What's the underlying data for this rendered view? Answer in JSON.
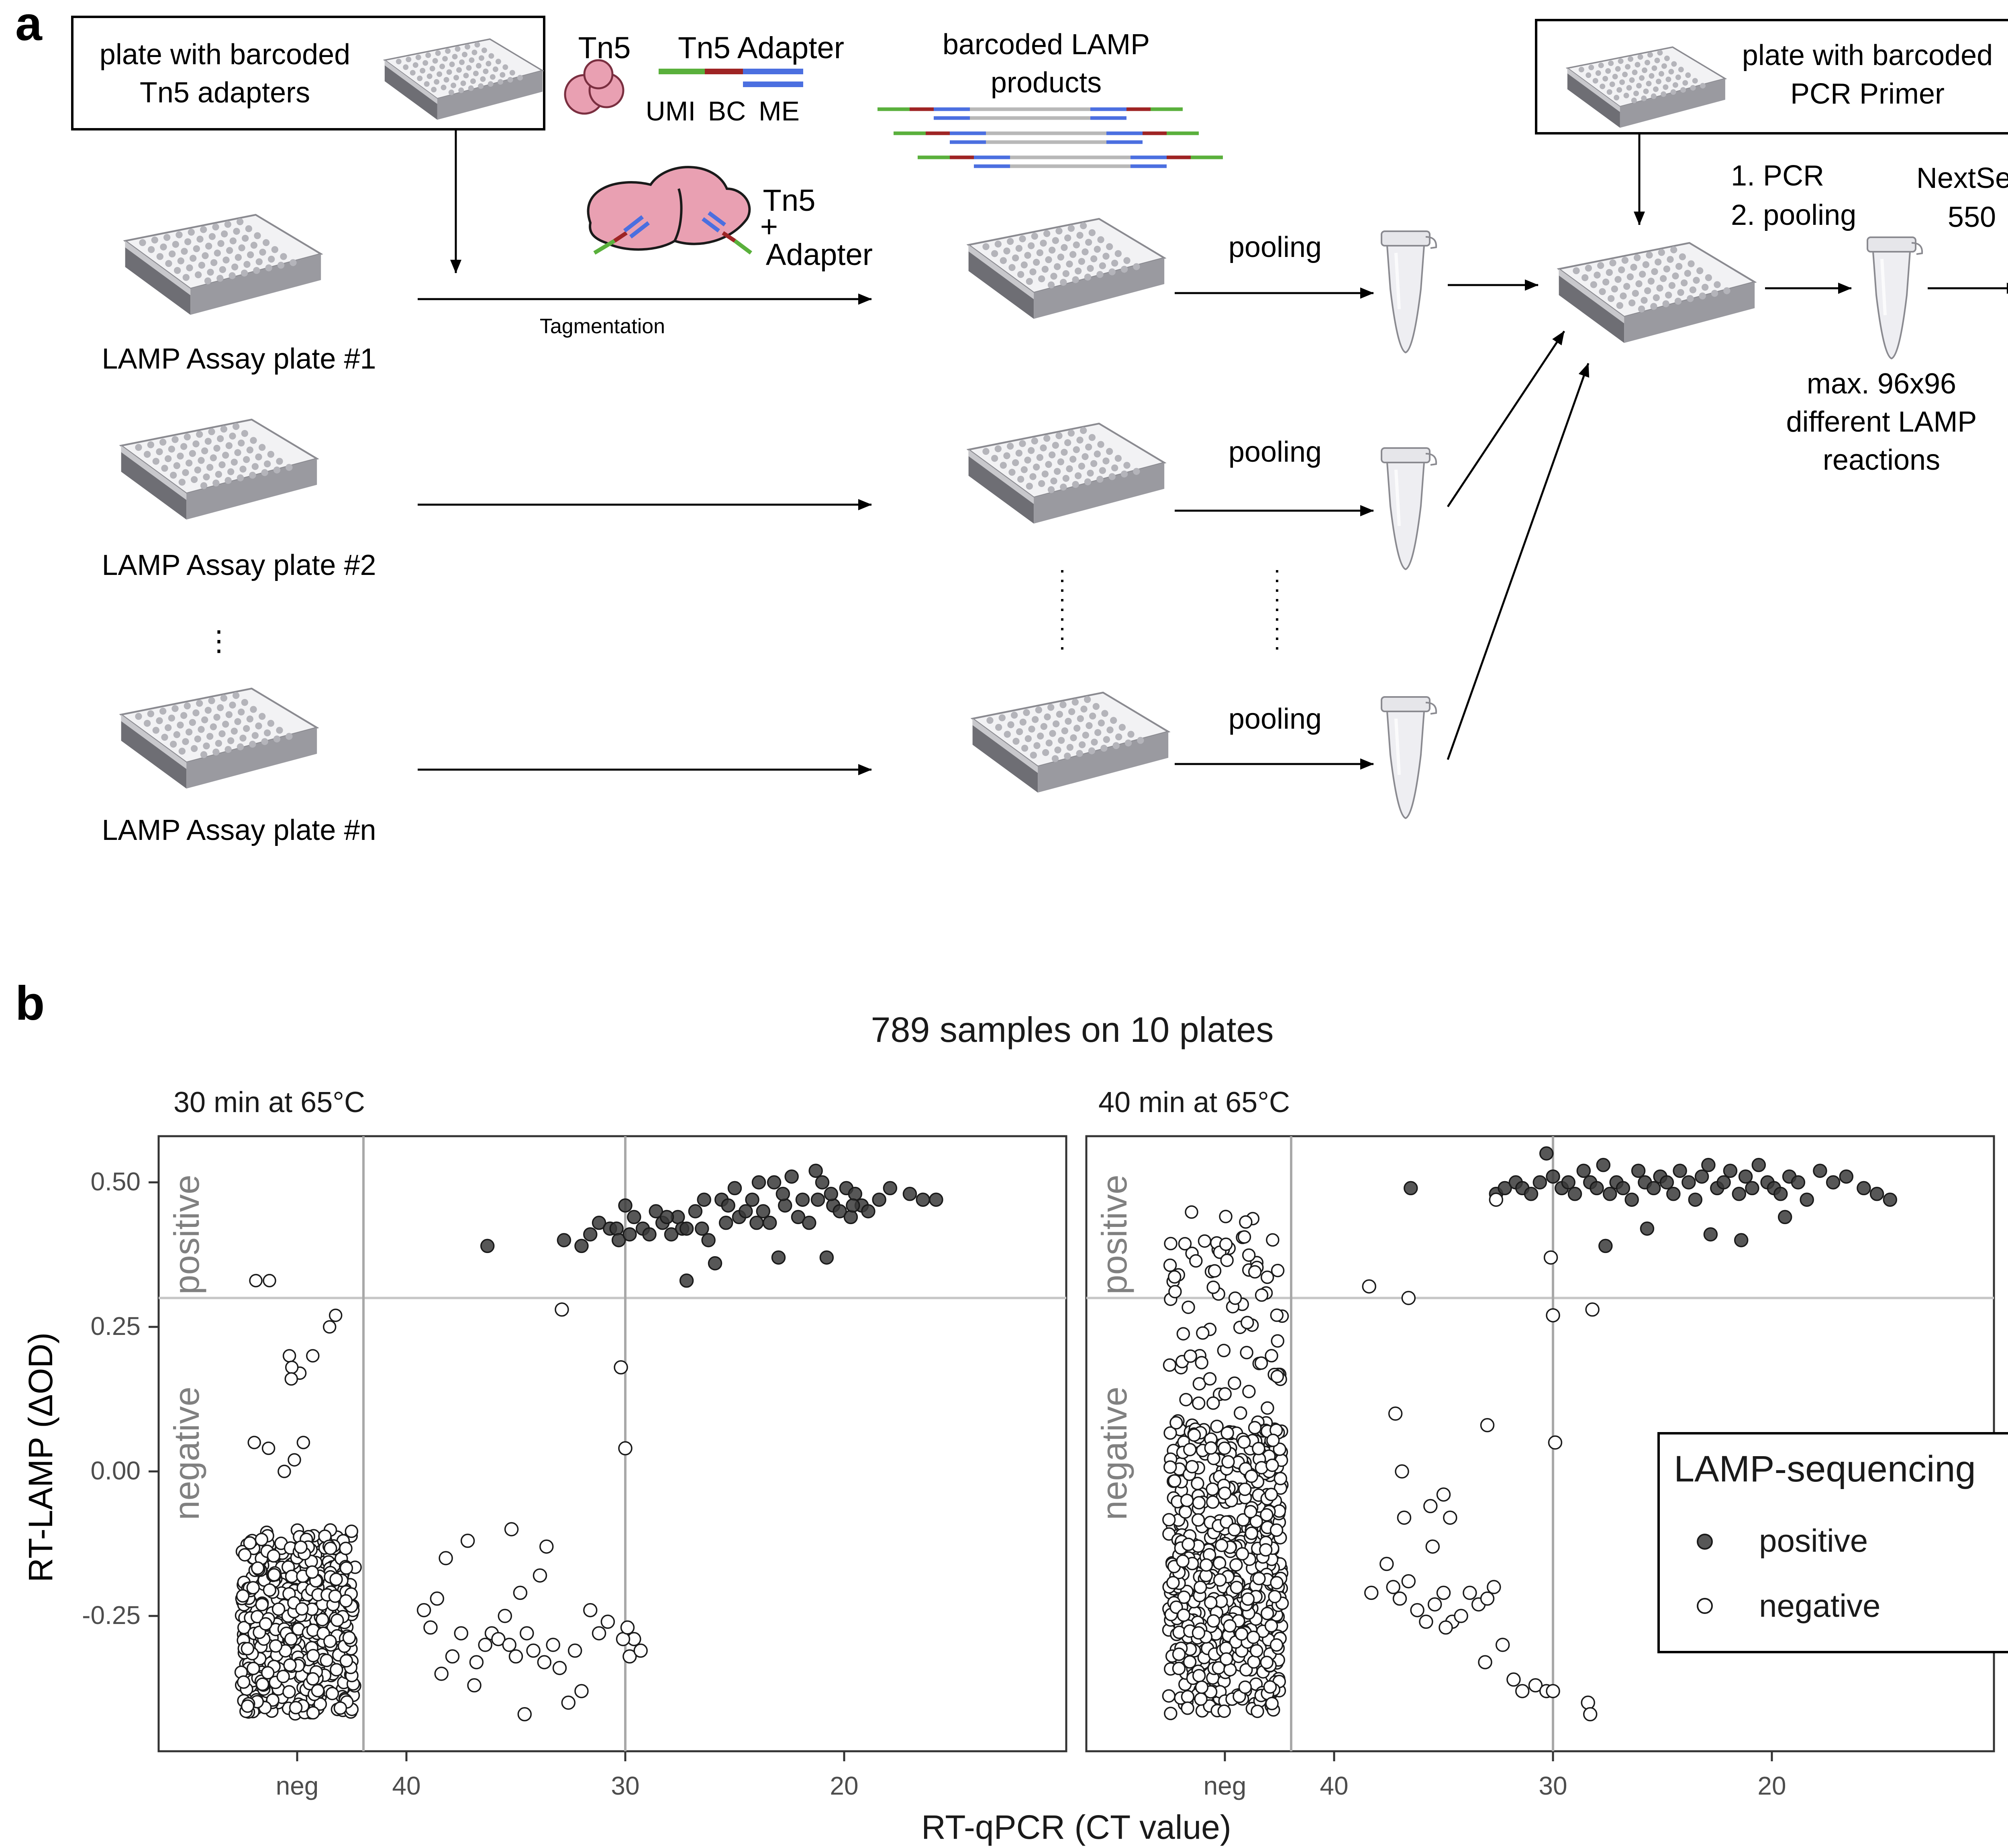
{
  "panel_a": {
    "label": "a",
    "box_tn5_plate": [
      "plate with barcoded",
      "Tn5 adapters"
    ],
    "tn5_label": "Tn5",
    "adapter_title": "Tn5 Adapter",
    "adapter_parts": [
      "UMI",
      "BC",
      "ME"
    ],
    "tn5_adapter_label": [
      "Tn5",
      "+",
      "Adapter"
    ],
    "barcoded_products": [
      "barcoded LAMP",
      "products"
    ],
    "tagmentation": "Tagmentation",
    "assay_plates": [
      "LAMP Assay plate #1",
      "LAMP Assay plate #2",
      "LAMP Assay plate #n"
    ],
    "pooling": "pooling",
    "box_pcr_plate": [
      "plate with barcoded",
      "PCR Primer"
    ],
    "steps": [
      "1.  PCR",
      "2.  pooling"
    ],
    "sequencer": [
      "NextSeq",
      "550"
    ],
    "max_note": [
      "max. 96x96",
      "different LAMP",
      "reactions"
    ],
    "colors": {
      "green": "#5ab03c",
      "red": "#9e2424",
      "blue": "#4b6fe0",
      "tn5": "#e9a0b2",
      "tn5_stroke": "#7a2f40"
    }
  },
  "panel_b": {
    "label": "b",
    "title": "789 samples on 10 plates",
    "facets": [
      "30 min at 65°C",
      "40 min at 65°C"
    ],
    "region_labels": [
      "positive",
      "negative"
    ],
    "x_label": "RT-qPCR (CT value)",
    "y_label": "RT-LAMP (ΔOD)",
    "x_ticks": [
      "neg",
      "40",
      "30",
      "20"
    ],
    "y_ticks": [
      "0.50",
      "0.25",
      "0.00",
      "-0.25"
    ],
    "legend": {
      "title": "LAMP-sequencing",
      "items": [
        "positive",
        "negative"
      ]
    },
    "colors": {
      "positive_fill": "#3a3a3a",
      "negative_fill": "#ffffff",
      "point_stroke": "#1a1a1a",
      "ref_line": "#c8c8c8"
    }
  },
  "chart_data": [
    {
      "type": "scatter",
      "title": "30 min at 65°C",
      "xlabel": "RT-qPCR (CT value)",
      "ylabel": "RT-LAMP (ΔOD)",
      "x_reversed": true,
      "xlim": [
        45,
        14
      ],
      "ylim": [
        -0.48,
        0.58
      ],
      "threshold_y": 0.3,
      "negative_category": {
        "count": 420,
        "y_dense_range": [
          -0.42,
          -0.1
        ],
        "sparse_y": [
          0.33,
          0.33,
          0.27,
          0.25,
          0.2,
          0.17,
          0.2,
          0.18,
          0.16,
          0.05,
          0.05,
          0.04,
          0.02,
          0.0
        ]
      },
      "series": [
        {
          "name": "positive",
          "x": [
            36.3,
            32.8,
            32.0,
            31.6,
            31.2,
            30.7,
            30.4,
            30.0,
            30.3,
            29.6,
            29.2,
            28.9,
            28.6,
            28.3,
            27.9,
            27.6,
            27.4,
            27.2,
            26.8,
            26.5,
            26.2,
            25.9,
            25.6,
            25.3,
            25.0,
            24.8,
            24.5,
            24.2,
            23.9,
            23.7,
            23.4,
            23.0,
            22.7,
            22.4,
            22.1,
            21.9,
            21.6,
            21.3,
            21.0,
            20.8,
            20.5,
            20.2,
            19.9,
            19.7,
            19.5,
            19.2,
            18.9,
            18.4,
            17.9,
            17.0,
            16.4,
            15.8,
            26.4,
            28.1,
            29.8,
            22.8,
            21.2,
            24.0,
            27.2,
            25.4,
            23.2,
            20.6,
            19.6
          ],
          "y": [
            0.39,
            0.4,
            0.39,
            0.41,
            0.43,
            0.42,
            0.42,
            0.46,
            0.4,
            0.44,
            0.42,
            0.41,
            0.45,
            0.43,
            0.41,
            0.44,
            0.42,
            0.33,
            0.45,
            0.42,
            0.4,
            0.36,
            0.47,
            0.46,
            0.49,
            0.44,
            0.45,
            0.47,
            0.5,
            0.45,
            0.43,
            0.37,
            0.46,
            0.51,
            0.44,
            0.47,
            0.43,
            0.52,
            0.5,
            0.37,
            0.46,
            0.45,
            0.49,
            0.44,
            0.48,
            0.46,
            0.45,
            0.47,
            0.49,
            0.48,
            0.47,
            0.47,
            0.47,
            0.44,
            0.41,
            0.48,
            0.47,
            0.43,
            0.42,
            0.43,
            0.5,
            0.48,
            0.46
          ]
        },
        {
          "name": "negative",
          "x": [
            32.9,
            39.2,
            38.9,
            38.6,
            38.2,
            37.9,
            37.5,
            37.2,
            36.8,
            36.4,
            36.1,
            35.8,
            35.5,
            35.3,
            35.0,
            34.8,
            34.5,
            34.2,
            33.9,
            33.6,
            33.3,
            33.0,
            32.6,
            32.3,
            32.0,
            31.6,
            31.2,
            30.8,
            30.2,
            30.0,
            29.8,
            29.6,
            29.3,
            36.9,
            35.2,
            33.7,
            30.1,
            29.9,
            38.4,
            34.6
          ],
          "y": [
            0.28,
            -0.24,
            -0.27,
            -0.22,
            -0.15,
            -0.32,
            -0.28,
            -0.12,
            -0.33,
            -0.3,
            -0.28,
            -0.29,
            -0.25,
            -0.3,
            -0.32,
            -0.21,
            -0.28,
            -0.31,
            -0.18,
            -0.13,
            -0.3,
            -0.34,
            -0.4,
            -0.31,
            -0.38,
            -0.24,
            -0.28,
            -0.26,
            0.18,
            0.04,
            -0.32,
            -0.29,
            -0.31,
            -0.37,
            -0.1,
            -0.33,
            -0.29,
            -0.27,
            -0.35,
            -0.42
          ]
        }
      ]
    },
    {
      "type": "scatter",
      "title": "40 min at 65°C",
      "xlabel": "RT-qPCR (CT value)",
      "ylabel": "RT-LAMP (ΔOD)",
      "x_reversed": true,
      "xlim": [
        45,
        14
      ],
      "ylim": [
        -0.48,
        0.58
      ],
      "threshold_y": 0.3,
      "negative_category": {
        "count": 620,
        "y_dense_range": [
          -0.42,
          0.45
        ]
      },
      "series": [
        {
          "name": "positive",
          "x": [
            36.5,
            32.6,
            32.2,
            31.7,
            31.4,
            31.0,
            30.6,
            30.3,
            30.0,
            29.6,
            29.3,
            29.0,
            28.6,
            28.3,
            28.0,
            27.7,
            27.4,
            27.1,
            26.8,
            26.4,
            26.1,
            25.8,
            25.4,
            25.1,
            24.8,
            24.5,
            24.2,
            23.8,
            23.5,
            23.2,
            22.9,
            22.5,
            22.2,
            21.9,
            21.5,
            21.2,
            20.9,
            20.6,
            20.2,
            19.9,
            19.6,
            19.2,
            18.8,
            18.4,
            17.8,
            17.2,
            16.6,
            15.8,
            15.2,
            14.6,
            27.6,
            25.7,
            22.8,
            21.4,
            19.4
          ],
          "y": [
            0.49,
            0.48,
            0.49,
            0.5,
            0.49,
            0.48,
            0.5,
            0.55,
            0.51,
            0.49,
            0.5,
            0.48,
            0.52,
            0.5,
            0.49,
            0.53,
            0.48,
            0.5,
            0.49,
            0.47,
            0.52,
            0.5,
            0.49,
            0.51,
            0.5,
            0.48,
            0.52,
            0.5,
            0.47,
            0.51,
            0.53,
            0.49,
            0.5,
            0.52,
            0.48,
            0.51,
            0.49,
            0.53,
            0.5,
            0.49,
            0.48,
            0.51,
            0.5,
            0.47,
            0.52,
            0.5,
            0.51,
            0.49,
            0.48,
            0.47,
            0.39,
            0.42,
            0.41,
            0.4,
            0.44
          ]
        },
        {
          "name": "negative",
          "x": [
            32.6,
            30.1,
            38.4,
            36.6,
            28.2,
            30.0,
            29.9,
            37.2,
            36.9,
            33.0,
            35.6,
            35.0,
            34.7,
            36.8,
            37.6,
            38.3,
            37.3,
            37.0,
            36.6,
            36.2,
            35.8,
            35.4,
            35.0,
            34.6,
            34.2,
            33.8,
            33.4,
            33.0,
            32.7,
            32.3,
            31.8,
            31.4,
            30.8,
            30.3,
            30.0,
            28.4,
            28.3,
            35.5,
            34.9,
            33.1
          ],
          "y": [
            0.47,
            0.37,
            0.32,
            0.3,
            0.28,
            0.27,
            0.05,
            0.1,
            0.0,
            0.08,
            -0.06,
            -0.04,
            -0.08,
            -0.08,
            -0.16,
            -0.21,
            -0.2,
            -0.22,
            -0.19,
            -0.24,
            -0.26,
            -0.23,
            -0.21,
            -0.26,
            -0.25,
            -0.21,
            -0.23,
            -0.22,
            -0.2,
            -0.3,
            -0.36,
            -0.38,
            -0.37,
            -0.38,
            -0.38,
            -0.4,
            -0.42,
            -0.13,
            -0.27,
            -0.33
          ]
        }
      ]
    }
  ]
}
